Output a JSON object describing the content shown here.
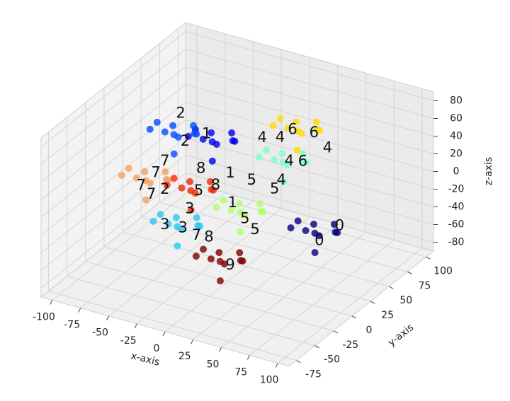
{
  "chart_data": {
    "type": "scatter3d",
    "x_label": "x-axis",
    "y_label": "y-axis",
    "z_label": "z-axis",
    "xlim": [
      -110,
      110
    ],
    "ylim": [
      -85,
      110
    ],
    "zlim": [
      -90,
      90
    ],
    "xticks": [
      -100,
      -75,
      -50,
      -25,
      0,
      25,
      50,
      75,
      100
    ],
    "yticks": [
      -75,
      -50,
      -25,
      0,
      25,
      50,
      75,
      100
    ],
    "zticks": [
      -80,
      -60,
      -40,
      -20,
      0,
      20,
      40,
      60,
      80
    ],
    "grid": true,
    "series": [
      {
        "color": "#00007f",
        "x": [
          77,
          89,
          66,
          85,
          63,
          95,
          71,
          82,
          59,
          86
        ],
        "y": [
          0,
          8,
          -6,
          -12,
          9,
          3,
          15,
          -9,
          -5,
          14
        ],
        "z": [
          -8,
          1,
          6,
          -19,
          -16,
          -3,
          -23,
          10,
          -5,
          -13
        ]
      },
      {
        "color": "#0000f1",
        "x": [
          -14,
          -2,
          -25,
          -6,
          -28,
          4,
          -20,
          -9,
          -32,
          -5
        ],
        "y": [
          0,
          8,
          -6,
          -12,
          9,
          3,
          15,
          -9,
          -5,
          14
        ],
        "z": [
          63,
          72,
          77,
          52,
          55,
          68,
          48,
          81,
          66,
          58
        ]
      },
      {
        "color": "#004cff",
        "x": [
          -48,
          -36,
          -59,
          -40,
          -62,
          -30,
          -54,
          -43,
          -66,
          -39
        ],
        "y": [
          0,
          8,
          -6,
          -12,
          9,
          3,
          15,
          -9,
          -5,
          14
        ],
        "z": [
          59,
          68,
          73,
          48,
          51,
          64,
          44,
          77,
          62,
          54
        ]
      },
      {
        "color": "#29c8f0",
        "x": [
          -45,
          -33,
          -56,
          -37,
          -59,
          -27,
          -51,
          -40,
          -63,
          -36
        ],
        "y": [
          0,
          8,
          -6,
          -12,
          9,
          3,
          15,
          -9,
          -5,
          14
        ],
        "z": [
          -44,
          -35,
          -30,
          -55,
          -52,
          -39,
          -59,
          -26,
          -41,
          -49
        ]
      },
      {
        "color": "#7dffc8",
        "x": [
          49,
          61,
          38,
          57,
          35,
          67,
          43,
          54,
          31,
          58
        ],
        "y": [
          0,
          8,
          -6,
          -12,
          9,
          3,
          15,
          -9,
          -5,
          14
        ],
        "z": [
          62,
          71,
          76,
          51,
          54,
          67,
          47,
          80,
          65,
          57
        ]
      },
      {
        "color": "#b0ff6a",
        "x": [
          11,
          23,
          0,
          19,
          -3,
          29,
          5,
          16,
          -7,
          20
        ],
        "y": [
          0,
          8,
          -6,
          -12,
          9,
          3,
          15,
          -9,
          -5,
          14
        ],
        "z": [
          -8,
          1,
          6,
          -19,
          -16,
          -3,
          -23,
          10,
          -5,
          -13
        ]
      },
      {
        "color": "#ffdc00",
        "x": [
          35,
          47,
          24,
          43,
          21,
          53,
          29,
          40,
          17,
          44
        ],
        "y": [
          40,
          48,
          34,
          28,
          49,
          43,
          55,
          31,
          35,
          54
        ],
        "z": [
          66,
          75,
          80,
          55,
          58,
          71,
          51,
          84,
          69,
          61
        ]
      },
      {
        "color": "#f4a060",
        "x": [
          -73,
          -61,
          -84,
          -65,
          -87,
          -55,
          -79,
          -68,
          -91,
          -64
        ],
        "y": [
          0,
          8,
          -6,
          -12,
          9,
          3,
          15,
          -9,
          -5,
          14
        ],
        "z": [
          -2,
          7,
          12,
          -13,
          -10,
          3,
          -17,
          16,
          1,
          -7
        ]
      },
      {
        "color": "#f12a08",
        "x": [
          -33,
          -21,
          -44,
          -25,
          -47,
          -15,
          -39,
          -28,
          -51,
          -24
        ],
        "y": [
          0,
          8,
          -6,
          -12,
          9,
          3,
          15,
          -9,
          -5,
          14
        ],
        "z": [
          1,
          10,
          15,
          -10,
          -7,
          6,
          -14,
          19,
          4,
          -4
        ]
      },
      {
        "color": "#800000",
        "x": [
          -7,
          5,
          -18,
          1,
          -21,
          11,
          -13,
          -2,
          -25,
          2
        ],
        "y": [
          0,
          8,
          -6,
          -12,
          9,
          3,
          15,
          -9,
          -5,
          14
        ],
        "z": [
          -70,
          -61,
          -56,
          -81,
          -78,
          -65,
          -85,
          -52,
          -67,
          -75
        ]
      }
    ],
    "annotations": [
      {
        "text": "6",
        "x": 31,
        "y": 40,
        "z": 66
      },
      {
        "text": "6",
        "x": 50,
        "y": 40,
        "z": 69
      },
      {
        "text": "6",
        "x": 40,
        "y": 40,
        "z": 33
      },
      {
        "text": "4",
        "x": 4,
        "y": 40,
        "z": 47
      },
      {
        "text": "4",
        "x": 20,
        "y": 40,
        "z": 53
      },
      {
        "text": "4",
        "x": 62,
        "y": 40,
        "z": 56
      },
      {
        "text": "4",
        "x": 28,
        "y": 40,
        "z": 29
      },
      {
        "text": "4",
        "x": 21,
        "y": 40,
        "z": 5
      },
      {
        "text": "5",
        "x": 15,
        "y": 40,
        "z": -7
      },
      {
        "text": "0",
        "x": 99,
        "y": 0,
        "z": 8
      },
      {
        "text": "0",
        "x": 81,
        "y": 0,
        "z": -15
      },
      {
        "text": "2",
        "x": -42,
        "y": 0,
        "z": 85
      },
      {
        "text": "2",
        "x": -38,
        "y": 0,
        "z": 55
      },
      {
        "text": "1",
        "x": -19,
        "y": 0,
        "z": 70
      },
      {
        "text": "1",
        "x": 2,
        "y": 0,
        "z": 33
      },
      {
        "text": "1",
        "x": 4,
        "y": 0,
        "z": 0
      },
      {
        "text": "5",
        "x": 21,
        "y": 0,
        "z": 32
      },
      {
        "text": "5",
        "x": 15,
        "y": 0,
        "z": -14
      },
      {
        "text": "5",
        "x": 24,
        "y": 0,
        "z": -23
      },
      {
        "text": "5",
        "x": -26,
        "y": 0,
        "z": 3
      },
      {
        "text": "8",
        "x": -24,
        "y": 0,
        "z": 29
      },
      {
        "text": "8",
        "x": -11,
        "y": 0,
        "z": 15
      },
      {
        "text": "8",
        "x": -17,
        "y": 0,
        "z": -46
      },
      {
        "text": "7",
        "x": -56,
        "y": 0,
        "z": 26
      },
      {
        "text": "7",
        "x": -64,
        "y": 0,
        "z": 10
      },
      {
        "text": "7",
        "x": -77,
        "y": 0,
        "z": -9
      },
      {
        "text": "7",
        "x": -68,
        "y": 0,
        "z": -16
      },
      {
        "text": "7",
        "x": -28,
        "y": 0,
        "z": -48
      },
      {
        "text": "2",
        "x": -56,
        "y": 0,
        "z": -6
      },
      {
        "text": "3",
        "x": -34,
        "y": 0,
        "z": -20
      },
      {
        "text": "3",
        "x": -56,
        "y": 0,
        "z": -46
      },
      {
        "text": "3",
        "x": -40,
        "y": 0,
        "z": -44
      },
      {
        "text": "9",
        "x": 2,
        "y": 0,
        "z": -71
      }
    ]
  }
}
